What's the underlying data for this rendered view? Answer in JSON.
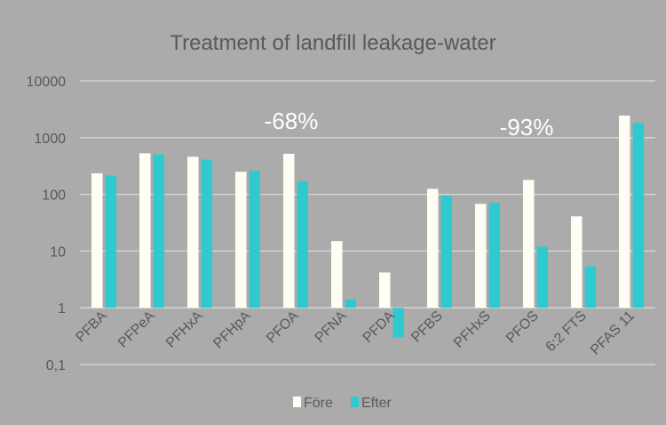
{
  "chart_data": {
    "type": "bar",
    "title": "Treatment of landfill leakage-water",
    "xlabel": "",
    "ylabel": "",
    "yscale": "log",
    "ylim": [
      0.1,
      10000
    ],
    "yticks": [
      {
        "value": 10000,
        "label": "10000"
      },
      {
        "value": 1000,
        "label": "1000"
      },
      {
        "value": 100,
        "label": "100"
      },
      {
        "value": 10,
        "label": "10"
      },
      {
        "value": 1,
        "label": "1"
      },
      {
        "value": 0.1,
        "label": "0,1"
      }
    ],
    "grid": true,
    "baseline": 1,
    "categories": [
      "PFBA",
      "PFPeA",
      "PFHxA",
      "PFHpA",
      "PFOA",
      "PFNA",
      "PFDA",
      "PFBS",
      "PFHxS",
      "PFOS",
      "6:2 FTS",
      "PFAS 11"
    ],
    "series": [
      {
        "name": "Före",
        "color": "#fffdf4",
        "values": [
          235,
          530,
          460,
          250,
          520,
          15,
          4.2,
          125,
          68,
          180,
          41,
          2450
        ]
      },
      {
        "name": "Efter",
        "color": "#2ecad0",
        "values": [
          215,
          510,
          410,
          260,
          170,
          1.4,
          0.3,
          95,
          70,
          12,
          5.4,
          1800
        ]
      }
    ],
    "annotations": [
      {
        "text": "-68%",
        "near_category": "PFOA"
      },
      {
        "text": "-93%",
        "near_category": "PFOS"
      }
    ],
    "legend": {
      "position": "bottom",
      "entries": [
        "Före",
        "Efter"
      ]
    }
  },
  "colors": {
    "background": "#ababab",
    "gridline": "#d9d9d9",
    "text": "#595959",
    "annotation": "#ffffff"
  }
}
